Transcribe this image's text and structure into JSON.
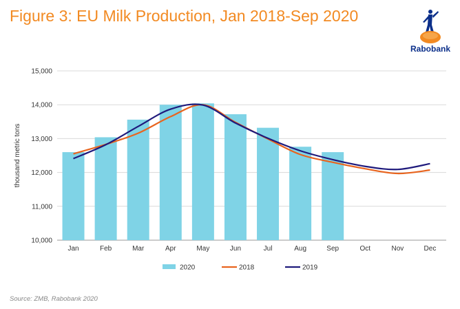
{
  "title": "Figure 3: EU Milk Production, Jan 2018-Sep 2020",
  "logo": {
    "text": "Rabobank",
    "icon": "rabobank-logo-icon",
    "color": "#0b2f8a",
    "accent": "#f28a22"
  },
  "source": "Source: ZMB, Rabobank 2020",
  "chart_data": {
    "type": "bar",
    "title": "",
    "ylabel": "thousand metric tons",
    "xlabel": "",
    "ylim": [
      10000,
      15000
    ],
    "yticks": [
      10000,
      11000,
      12000,
      13000,
      14000,
      15000
    ],
    "ytick_labels": [
      "10,000",
      "11,000",
      "12,000",
      "13,000",
      "14,000",
      "15,000"
    ],
    "categories": [
      "Jan",
      "Feb",
      "Mar",
      "Apr",
      "May",
      "Jun",
      "Jul",
      "Aug",
      "Sep",
      "Oct",
      "Nov",
      "Dec"
    ],
    "grid": true,
    "legend": "bottom",
    "series": [
      {
        "name": "2020",
        "type": "bar",
        "color": "#7fd3e6",
        "values": [
          12600,
          13040,
          13560,
          14000,
          14040,
          13720,
          13320,
          12760,
          12600,
          null,
          null,
          null
        ]
      },
      {
        "name": "2018",
        "type": "line",
        "color": "#e8641e",
        "values": [
          12550,
          12830,
          13160,
          13650,
          14000,
          13480,
          12990,
          12530,
          12300,
          12110,
          11970,
          12070
        ]
      },
      {
        "name": "2019",
        "type": "line",
        "color": "#1f1a7c",
        "values": [
          12410,
          12820,
          13360,
          13870,
          13990,
          13460,
          13010,
          12640,
          12380,
          12180,
          12090,
          12260
        ]
      }
    ]
  }
}
